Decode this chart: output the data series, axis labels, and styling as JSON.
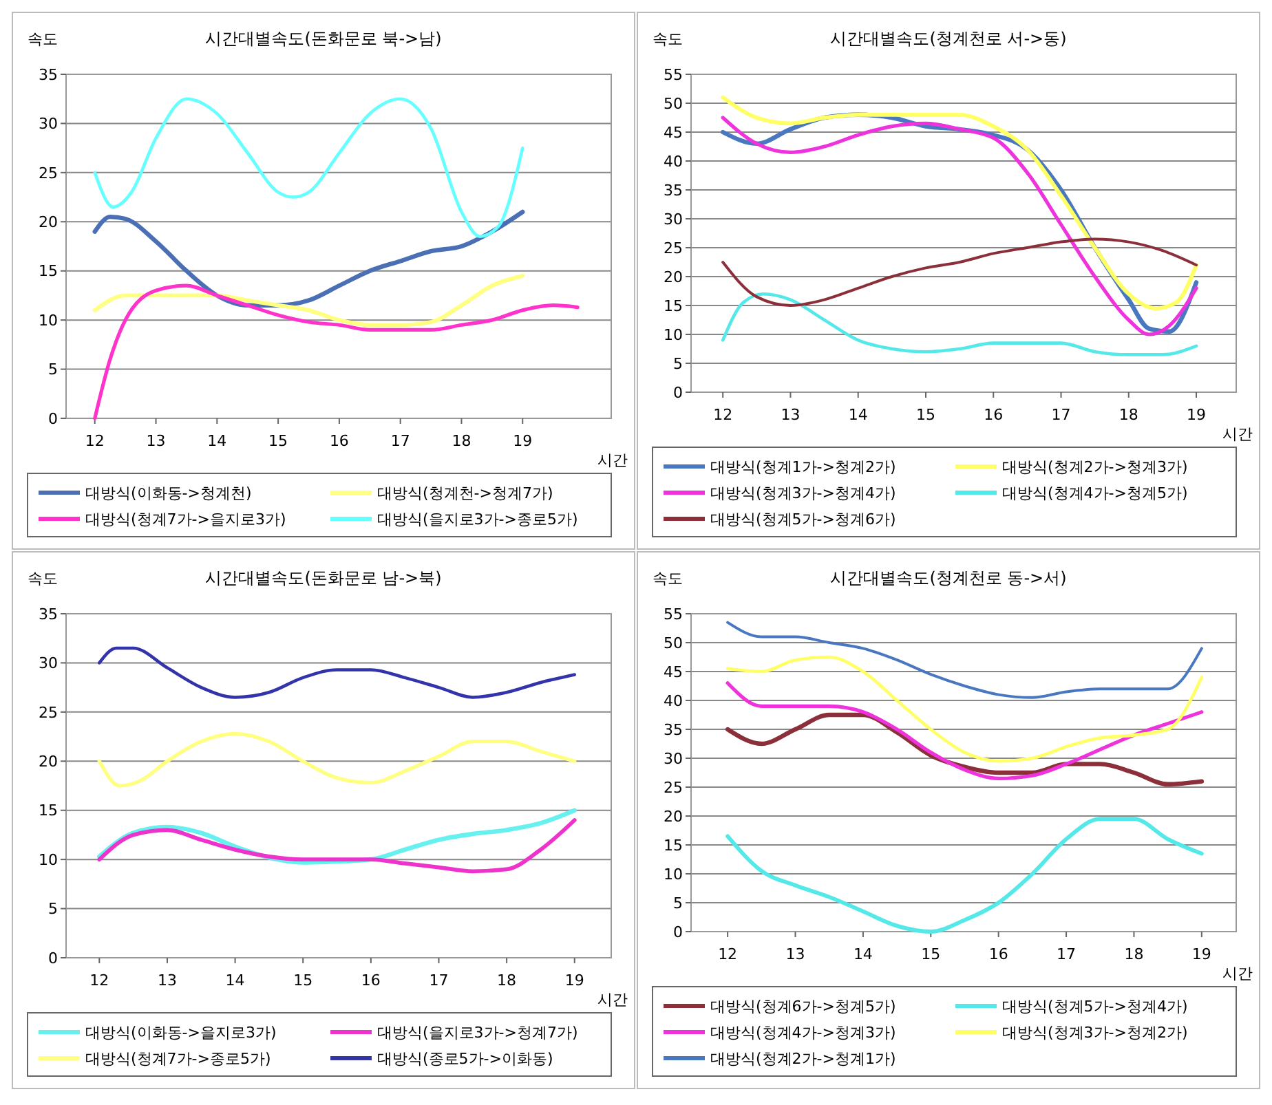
{
  "chart_data": [
    {
      "type": "line",
      "title": "시간대별속도(돈화문로 북->남)",
      "ylabel": "속도",
      "xlabel": "시간",
      "xlim": [
        11.53,
        20.45
      ],
      "xticks": [
        12,
        13,
        14,
        15,
        16,
        17,
        18,
        19
      ],
      "ylim": [
        0,
        35
      ],
      "yticks": [
        0,
        5,
        10,
        15,
        20,
        25,
        30,
        35
      ],
      "grid": "y",
      "legend": "bottom",
      "series": [
        {
          "name": "대방식(이화동->청계천)",
          "color": "#4a6fb5",
          "x": [
            12,
            12.25,
            12.5,
            13,
            13.5,
            14,
            14.5,
            15,
            15.5,
            16,
            16.5,
            17,
            17.5,
            18,
            18.5,
            19
          ],
          "values": [
            19,
            20.5,
            20.3,
            18,
            15,
            12.5,
            11.5,
            11.5,
            12,
            13.5,
            15,
            16,
            17,
            17.5,
            19,
            21
          ]
        },
        {
          "name": "대방식(청계천->청계7가)",
          "color": "#ffff80",
          "x": [
            12,
            12.5,
            13,
            13.5,
            14,
            14.5,
            15,
            15.5,
            16,
            16.5,
            17,
            17.5,
            18,
            18.5,
            19
          ],
          "values": [
            11,
            12.5,
            12.5,
            12.5,
            12.5,
            12,
            11.5,
            11,
            10,
            9.5,
            9.5,
            9.8,
            11.5,
            13.5,
            14.5
          ]
        },
        {
          "name": "대방식(청계7가->을지로3가)",
          "color": "#ff33cc",
          "x": [
            12,
            12.25,
            12.5,
            13,
            13.5,
            14,
            14.5,
            15,
            15.5,
            16,
            16.5,
            17,
            17.5,
            18,
            18.5,
            19,
            19.5,
            19.9
          ],
          "values": [
            0,
            6,
            10,
            13,
            13.5,
            12.5,
            11.5,
            10.5,
            9.8,
            9.5,
            9,
            9,
            9,
            9.5,
            10,
            11,
            11.5,
            11.3
          ]
        },
        {
          "name": "대방식(을지로3가->종로5가)",
          "color": "#66ffff",
          "x": [
            12,
            12.3,
            12.6,
            13,
            13.5,
            14,
            14.5,
            15,
            15.25,
            15.5,
            16,
            16.5,
            17,
            17.5,
            18,
            18.3,
            18.6,
            19
          ],
          "values": [
            25,
            21.5,
            23,
            28.5,
            32.5,
            31,
            27,
            23,
            22.5,
            23,
            27,
            31,
            32.5,
            29.5,
            21,
            18.5,
            19.5,
            27.5
          ]
        }
      ]
    },
    {
      "type": "line",
      "title": "시간대별속도(청계천로 서->동)",
      "ylabel": "속도",
      "xlabel": "시간",
      "xlim": [
        11.53,
        19.59
      ],
      "xticks": [
        12,
        13,
        14,
        15,
        16,
        17,
        18,
        19
      ],
      "ylim": [
        0,
        55
      ],
      "yticks": [
        0,
        5,
        10,
        15,
        20,
        25,
        30,
        35,
        40,
        45,
        50,
        55
      ],
      "grid": "y",
      "legend": "bottom",
      "series": [
        {
          "name": "대방식(청계1가->청계2가)",
          "color": "#4a78c0",
          "x": [
            12,
            12.5,
            13,
            13.5,
            14,
            14.5,
            15,
            15.5,
            16,
            16.5,
            17,
            17.5,
            18,
            18.3,
            18.6,
            19
          ],
          "values": [
            45,
            43,
            45.5,
            47.5,
            48,
            47.5,
            46,
            45.5,
            44.5,
            42,
            35,
            25,
            16,
            11,
            10.5,
            19
          ]
        },
        {
          "name": "대방식(청계2가->청계3가)",
          "color": "#ffff66",
          "x": [
            12,
            12.5,
            13,
            13.5,
            14,
            14.5,
            15,
            15.5,
            16,
            16.5,
            17,
            17.5,
            18,
            18.4,
            18.7,
            19
          ],
          "values": [
            51,
            47.5,
            46.5,
            47.5,
            48,
            48,
            48,
            48,
            46,
            42,
            34,
            25,
            17,
            14.5,
            15.5,
            22
          ]
        },
        {
          "name": "대방식(청계3가->청계4가)",
          "color": "#ee33dd",
          "x": [
            12,
            12.5,
            13,
            13.5,
            14,
            14.5,
            15,
            15.5,
            16,
            16.5,
            17,
            17.5,
            18,
            18.3,
            18.6,
            19
          ],
          "values": [
            47.5,
            43,
            41.5,
            42.5,
            44.5,
            46,
            46.5,
            45.5,
            44,
            38,
            29,
            20,
            12.5,
            10,
            11.5,
            18
          ]
        },
        {
          "name": "대방식(청계4가->청계5가)",
          "color": "#55e8e8",
          "x": [
            12,
            12.3,
            12.6,
            13,
            13.5,
            14,
            14.5,
            15,
            15.5,
            16,
            16.5,
            17,
            17.5,
            18,
            18.5,
            19
          ],
          "values": [
            9,
            15.5,
            17,
            16,
            12.5,
            9,
            7.5,
            7,
            7.5,
            8.5,
            8.5,
            8.5,
            7,
            6.5,
            6.5,
            8
          ]
        },
        {
          "name": "대방식(청계5가->청계6가)",
          "color": "#8b2f3a",
          "x": [
            12,
            12.5,
            13,
            13.5,
            14,
            14.5,
            15,
            15.5,
            16,
            16.5,
            17,
            17.5,
            18,
            18.5,
            19
          ],
          "values": [
            22.5,
            16.5,
            15,
            16,
            18,
            20,
            21.5,
            22.5,
            24,
            25,
            26,
            26.5,
            26,
            24.5,
            22
          ]
        }
      ]
    },
    {
      "type": "line",
      "title": "시간대별속도(돈화문로 남->북)",
      "ylabel": "속도",
      "xlabel": "시간",
      "xlim": [
        11.51,
        19.54
      ],
      "xticks": [
        12,
        13,
        14,
        15,
        16,
        17,
        18,
        19
      ],
      "ylim": [
        0,
        35
      ],
      "yticks": [
        0,
        5,
        10,
        15,
        20,
        25,
        30,
        35
      ],
      "grid": "y",
      "legend": "bottom",
      "series": [
        {
          "name": "대방식(이화동->을지로3가)",
          "color": "#66f0f0",
          "x": [
            12,
            12.5,
            13,
            13.5,
            14,
            14.5,
            15,
            15.5,
            16,
            16.5,
            17,
            17.5,
            18,
            18.5,
            19
          ],
          "values": [
            10.3,
            12.7,
            13.3,
            12.7,
            11.3,
            10.2,
            9.7,
            9.8,
            10,
            11,
            12,
            12.6,
            13,
            13.7,
            15
          ]
        },
        {
          "name": "대방식(을지로3가->청계7가)",
          "color": "#ee33cc",
          "x": [
            12,
            12.5,
            13,
            13.5,
            14,
            14.5,
            15,
            15.5,
            16,
            16.5,
            17,
            17.5,
            18,
            18.5,
            19
          ],
          "values": [
            10,
            12.5,
            13,
            12,
            11,
            10.3,
            10,
            10,
            10,
            9.6,
            9.2,
            8.8,
            9,
            11,
            14
          ]
        },
        {
          "name": "대방식(청계7가->종로5가)",
          "color": "#ffff80",
          "x": [
            12,
            12.3,
            12.6,
            13,
            13.5,
            14,
            14.5,
            15,
            15.5,
            16,
            16.5,
            17,
            17.5,
            18,
            18.5,
            19
          ],
          "values": [
            20,
            17.5,
            18,
            20,
            22,
            22.8,
            22,
            20,
            18.3,
            17.8,
            19,
            20.5,
            22,
            22,
            21,
            20
          ]
        },
        {
          "name": "대방식(종로5가->이화동)",
          "color": "#3333aa",
          "x": [
            12,
            12.25,
            12.5,
            13,
            13.5,
            14,
            14.5,
            15,
            15.5,
            16,
            16.5,
            17,
            17.5,
            18,
            18.5,
            19
          ],
          "values": [
            30,
            31.5,
            31.5,
            29.5,
            27.5,
            26.5,
            27,
            28.5,
            29.3,
            29.3,
            28.5,
            27.5,
            26.5,
            27,
            28,
            28.8
          ]
        }
      ]
    },
    {
      "type": "line",
      "title": "시간대별속도(청계천로 동->서)",
      "ylabel": "속도",
      "xlabel": "시간",
      "xlim": [
        11.46,
        19.51
      ],
      "xticks": [
        12,
        13,
        14,
        15,
        16,
        17,
        18,
        19
      ],
      "ylim": [
        0,
        55
      ],
      "yticks": [
        0,
        5,
        10,
        15,
        20,
        25,
        30,
        35,
        40,
        45,
        50,
        55
      ],
      "grid": "y",
      "legend": "bottom",
      "series": [
        {
          "name": "대방식(청계6가->청계5가)",
          "color": "#8b2f3a",
          "x": [
            12,
            12.5,
            13,
            13.5,
            14,
            14.5,
            15,
            15.5,
            16,
            16.5,
            17,
            17.5,
            18,
            18.5,
            19
          ],
          "values": [
            35,
            32.5,
            35,
            37.5,
            37.5,
            34.5,
            30.5,
            28.5,
            27.5,
            27.5,
            29,
            29,
            27.5,
            25.5,
            26
          ]
        },
        {
          "name": "대방식(청계5가->청계4가)",
          "color": "#55e8e8",
          "x": [
            12,
            12.5,
            13,
            13.5,
            14,
            14.5,
            15,
            15.5,
            16,
            16.5,
            17,
            17.5,
            18,
            18.5,
            19
          ],
          "values": [
            16.5,
            10.5,
            8,
            6,
            3.5,
            1,
            0,
            2,
            5,
            10,
            16,
            19.5,
            19.5,
            16,
            13.5
          ]
        },
        {
          "name": "대방식(청계4가->청계3가)",
          "color": "#ee33dd",
          "x": [
            12,
            12.5,
            13,
            13.5,
            14,
            14.5,
            15,
            15.5,
            16,
            16.5,
            17,
            17.5,
            18,
            18.5,
            19
          ],
          "values": [
            43,
            39,
            39,
            39,
            38,
            35,
            31,
            28,
            26.5,
            27,
            29,
            31.5,
            34,
            36,
            38
          ]
        },
        {
          "name": "대방식(청계3가->청계2가)",
          "color": "#ffff66",
          "x": [
            12,
            12.5,
            13,
            13.5,
            14,
            14.5,
            15,
            15.5,
            16,
            16.5,
            17,
            17.5,
            18,
            18.5,
            19
          ],
          "values": [
            45.5,
            45,
            47,
            47.5,
            45,
            40,
            35,
            31,
            29.5,
            30,
            32,
            33.5,
            34,
            35,
            44
          ]
        },
        {
          "name": "대방식(청계2가->청계1가)",
          "color": "#4a78c0",
          "x": [
            12,
            12.5,
            13,
            13.5,
            14,
            14.5,
            15,
            15.5,
            16,
            16.5,
            17,
            17.5,
            18,
            18.5,
            19
          ],
          "values": [
            53.5,
            51,
            51,
            50,
            49,
            47,
            44.5,
            42.5,
            41,
            40.5,
            41.5,
            42,
            42,
            42,
            49
          ]
        }
      ]
    }
  ]
}
